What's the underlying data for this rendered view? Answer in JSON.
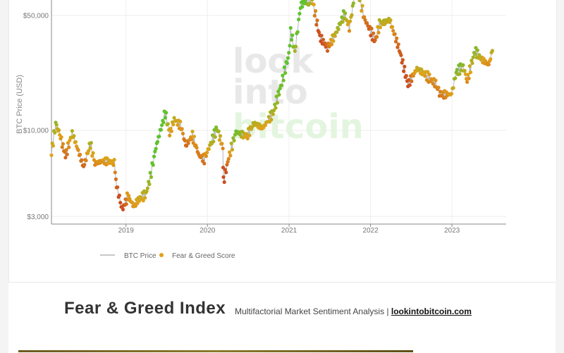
{
  "chart_data": {
    "type": "scatter",
    "title": "",
    "ylabel": "BTC Price (USD)",
    "xlabel": "",
    "y_scale": "log",
    "ylim": [
      2700,
      62000
    ],
    "xlim": [
      "2018-02-01",
      "2023-09-01"
    ],
    "y_ticks": [
      {
        "value": 50000,
        "label": "$50,000"
      },
      {
        "value": 10000,
        "label": "$10,000"
      },
      {
        "value": 3000,
        "label": "$3,000"
      }
    ],
    "x_ticks": [
      "2019",
      "2020",
      "2021",
      "2022",
      "2023"
    ],
    "legend": [
      {
        "name": "BTC Price",
        "kind": "line",
        "color": "#b5b5b5"
      },
      {
        "name": "Fear & Greed Score",
        "kind": "marker",
        "color": "#e0a21a"
      }
    ],
    "grid": true,
    "series": [
      {
        "name": "BTC Price",
        "points": [
          [
            "2018-02-01",
            7300
          ],
          [
            "2018-02-20",
            11000
          ],
          [
            "2018-03-10",
            9500
          ],
          [
            "2018-04-05",
            7000
          ],
          [
            "2018-05-05",
            9700
          ],
          [
            "2018-06-25",
            6000
          ],
          [
            "2018-07-25",
            8300
          ],
          [
            "2018-08-15",
            6300
          ],
          [
            "2018-09-15",
            6500
          ],
          [
            "2018-10-20",
            6500
          ],
          [
            "2018-11-10",
            6300
          ],
          [
            "2018-11-20",
            4600
          ],
          [
            "2018-12-15",
            3300
          ],
          [
            "2019-01-10",
            4000
          ],
          [
            "2019-02-05",
            3450
          ],
          [
            "2019-02-25",
            3800
          ],
          [
            "2019-03-31",
            4100
          ],
          [
            "2019-04-20",
            5200
          ],
          [
            "2019-05-15",
            7900
          ],
          [
            "2019-06-26",
            12800
          ],
          [
            "2019-07-16",
            9500
          ],
          [
            "2019-08-05",
            11700
          ],
          [
            "2019-09-05",
            10600
          ],
          [
            "2019-09-26",
            8100
          ],
          [
            "2019-10-26",
            9300
          ],
          [
            "2019-11-25",
            7000
          ],
          [
            "2019-12-18",
            6700
          ],
          [
            "2020-01-20",
            8600
          ],
          [
            "2020-02-13",
            10300
          ],
          [
            "2020-03-10",
            7900
          ],
          [
            "2020-03-13",
            4900
          ],
          [
            "2020-04-05",
            6800
          ],
          [
            "2020-05-08",
            9800
          ],
          [
            "2020-06-25",
            9200
          ],
          [
            "2020-07-28",
            11100
          ],
          [
            "2020-09-05",
            10300
          ],
          [
            "2020-10-21",
            12800
          ],
          [
            "2020-11-25",
            18500
          ],
          [
            "2020-12-31",
            29000
          ],
          [
            "2021-01-08",
            40000
          ],
          [
            "2021-01-27",
            30000
          ],
          [
            "2021-02-21",
            57000
          ],
          [
            "2021-03-13",
            61000
          ],
          [
            "2021-04-14",
            63000
          ],
          [
            "2021-05-19",
            37000
          ],
          [
            "2021-06-22",
            31800
          ],
          [
            "2021-07-26",
            38000
          ],
          [
            "2021-09-06",
            51000
          ],
          [
            "2021-09-28",
            42000
          ],
          [
            "2021-10-20",
            64000
          ],
          [
            "2021-11-09",
            67500
          ],
          [
            "2021-12-04",
            48000
          ],
          [
            "2022-01-22",
            35000
          ],
          [
            "2022-02-10",
            44000
          ],
          [
            "2022-03-28",
            47000
          ],
          [
            "2022-05-10",
            31000
          ],
          [
            "2022-06-18",
            19000
          ],
          [
            "2022-07-28",
            23800
          ],
          [
            "2022-09-10",
            21500
          ],
          [
            "2022-10-20",
            19200
          ],
          [
            "2022-11-10",
            16500
          ],
          [
            "2022-12-30",
            16600
          ],
          [
            "2023-01-20",
            22500
          ],
          [
            "2023-02-20",
            24700
          ],
          [
            "2023-03-10",
            20000
          ],
          [
            "2023-04-14",
            30400
          ],
          [
            "2023-05-15",
            27000
          ],
          [
            "2023-06-15",
            25000
          ],
          [
            "2023-07-01",
            30500
          ]
        ]
      }
    ]
  },
  "watermark": {
    "line1": "look",
    "line2": "into",
    "line3": "bitcoin"
  },
  "footer": {
    "title": "Fear & Greed Index",
    "subtitle": "Multifactorial Market Sentiment Analysis |",
    "link": "lookintobitcoin.com"
  },
  "colors": {
    "fear": "#cc4e1f",
    "neutral": "#e0a21a",
    "greed": "#5fc32e",
    "line": "#b5b5b5",
    "grid": "#eeeeee"
  }
}
